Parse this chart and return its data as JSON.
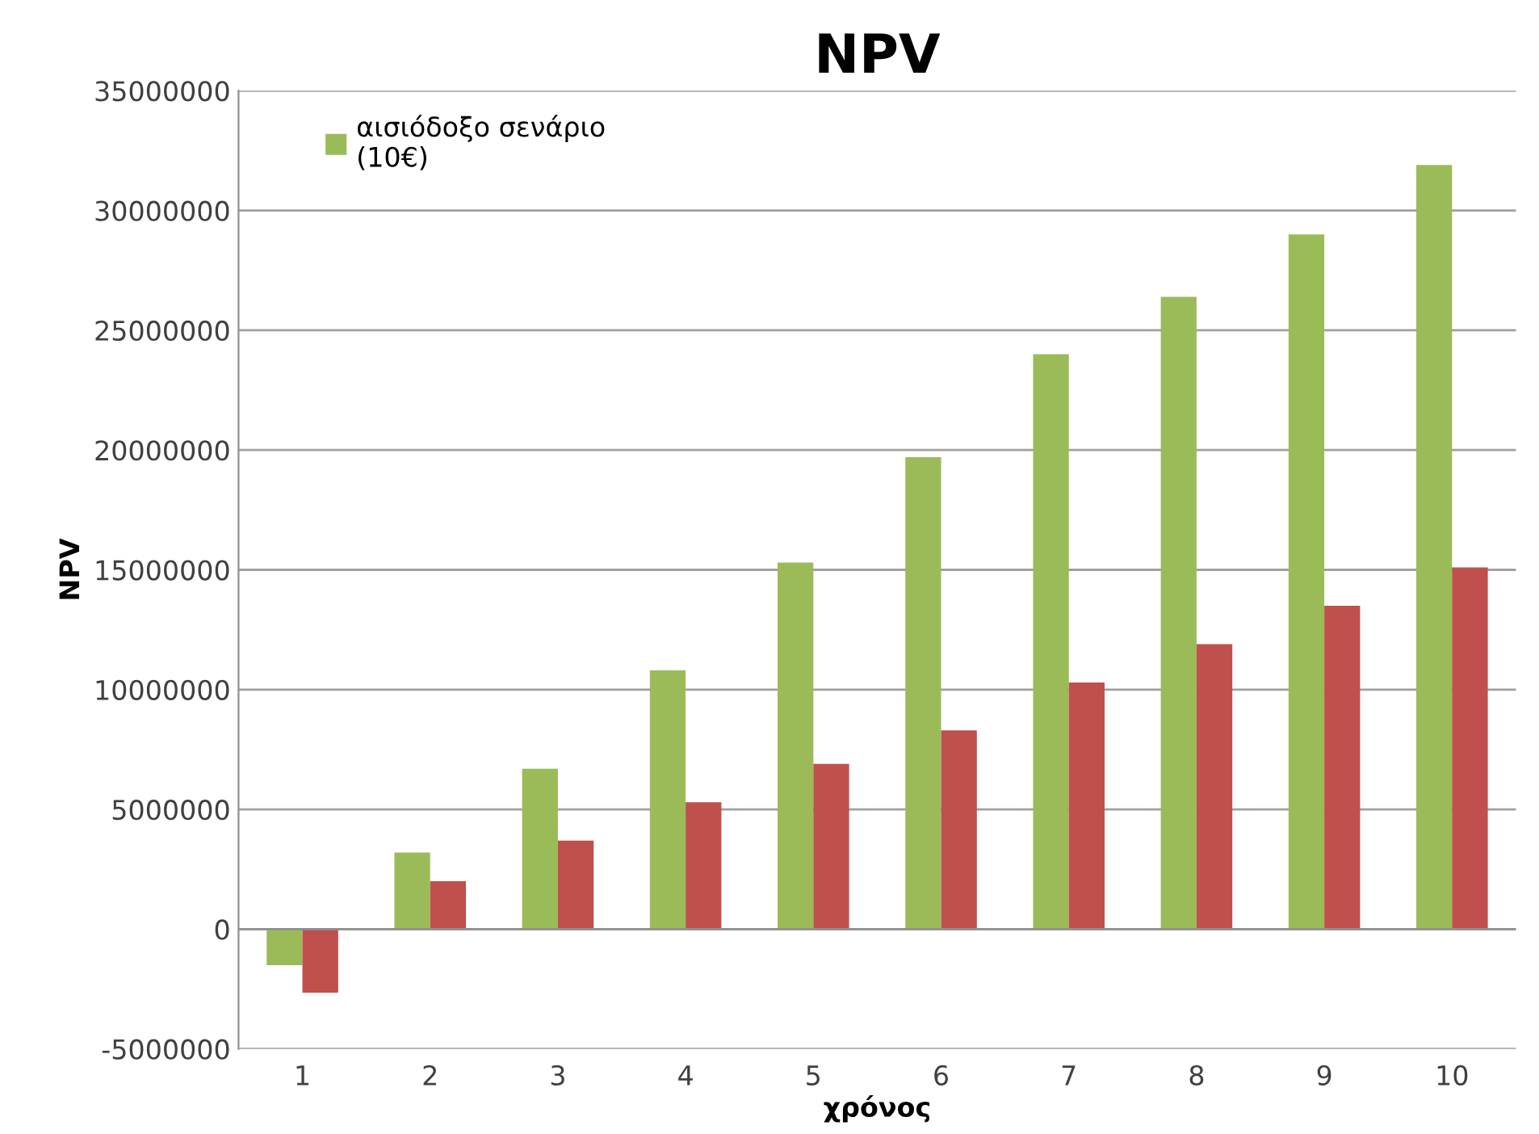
{
  "chart_data": {
    "type": "bar",
    "title": "NPV",
    "xlabel": "χρόνος",
    "ylabel": "NPV",
    "categories": [
      "1",
      "2",
      "3",
      "4",
      "5",
      "6",
      "7",
      "8",
      "9",
      "10"
    ],
    "series": [
      {
        "name": "αισιόδοξο σενάριο\n(10€)",
        "color": "#9bbb59",
        "values": [
          -1500000,
          3200000,
          6700000,
          10800000,
          15300000,
          19700000,
          24000000,
          26400000,
          29000000,
          31900000
        ]
      },
      {
        "color": "#c0504d",
        "values": [
          -2650000,
          2000000,
          3700000,
          5300000,
          6900000,
          8300000,
          10300000,
          11900000,
          13500000,
          15100000
        ]
      }
    ],
    "ylim": [
      -5000000,
      35000000
    ],
    "yticks": [
      -5000000,
      0,
      5000000,
      10000000,
      15000000,
      20000000,
      25000000,
      30000000,
      35000000
    ],
    "grid": "y",
    "legend": "top left"
  }
}
